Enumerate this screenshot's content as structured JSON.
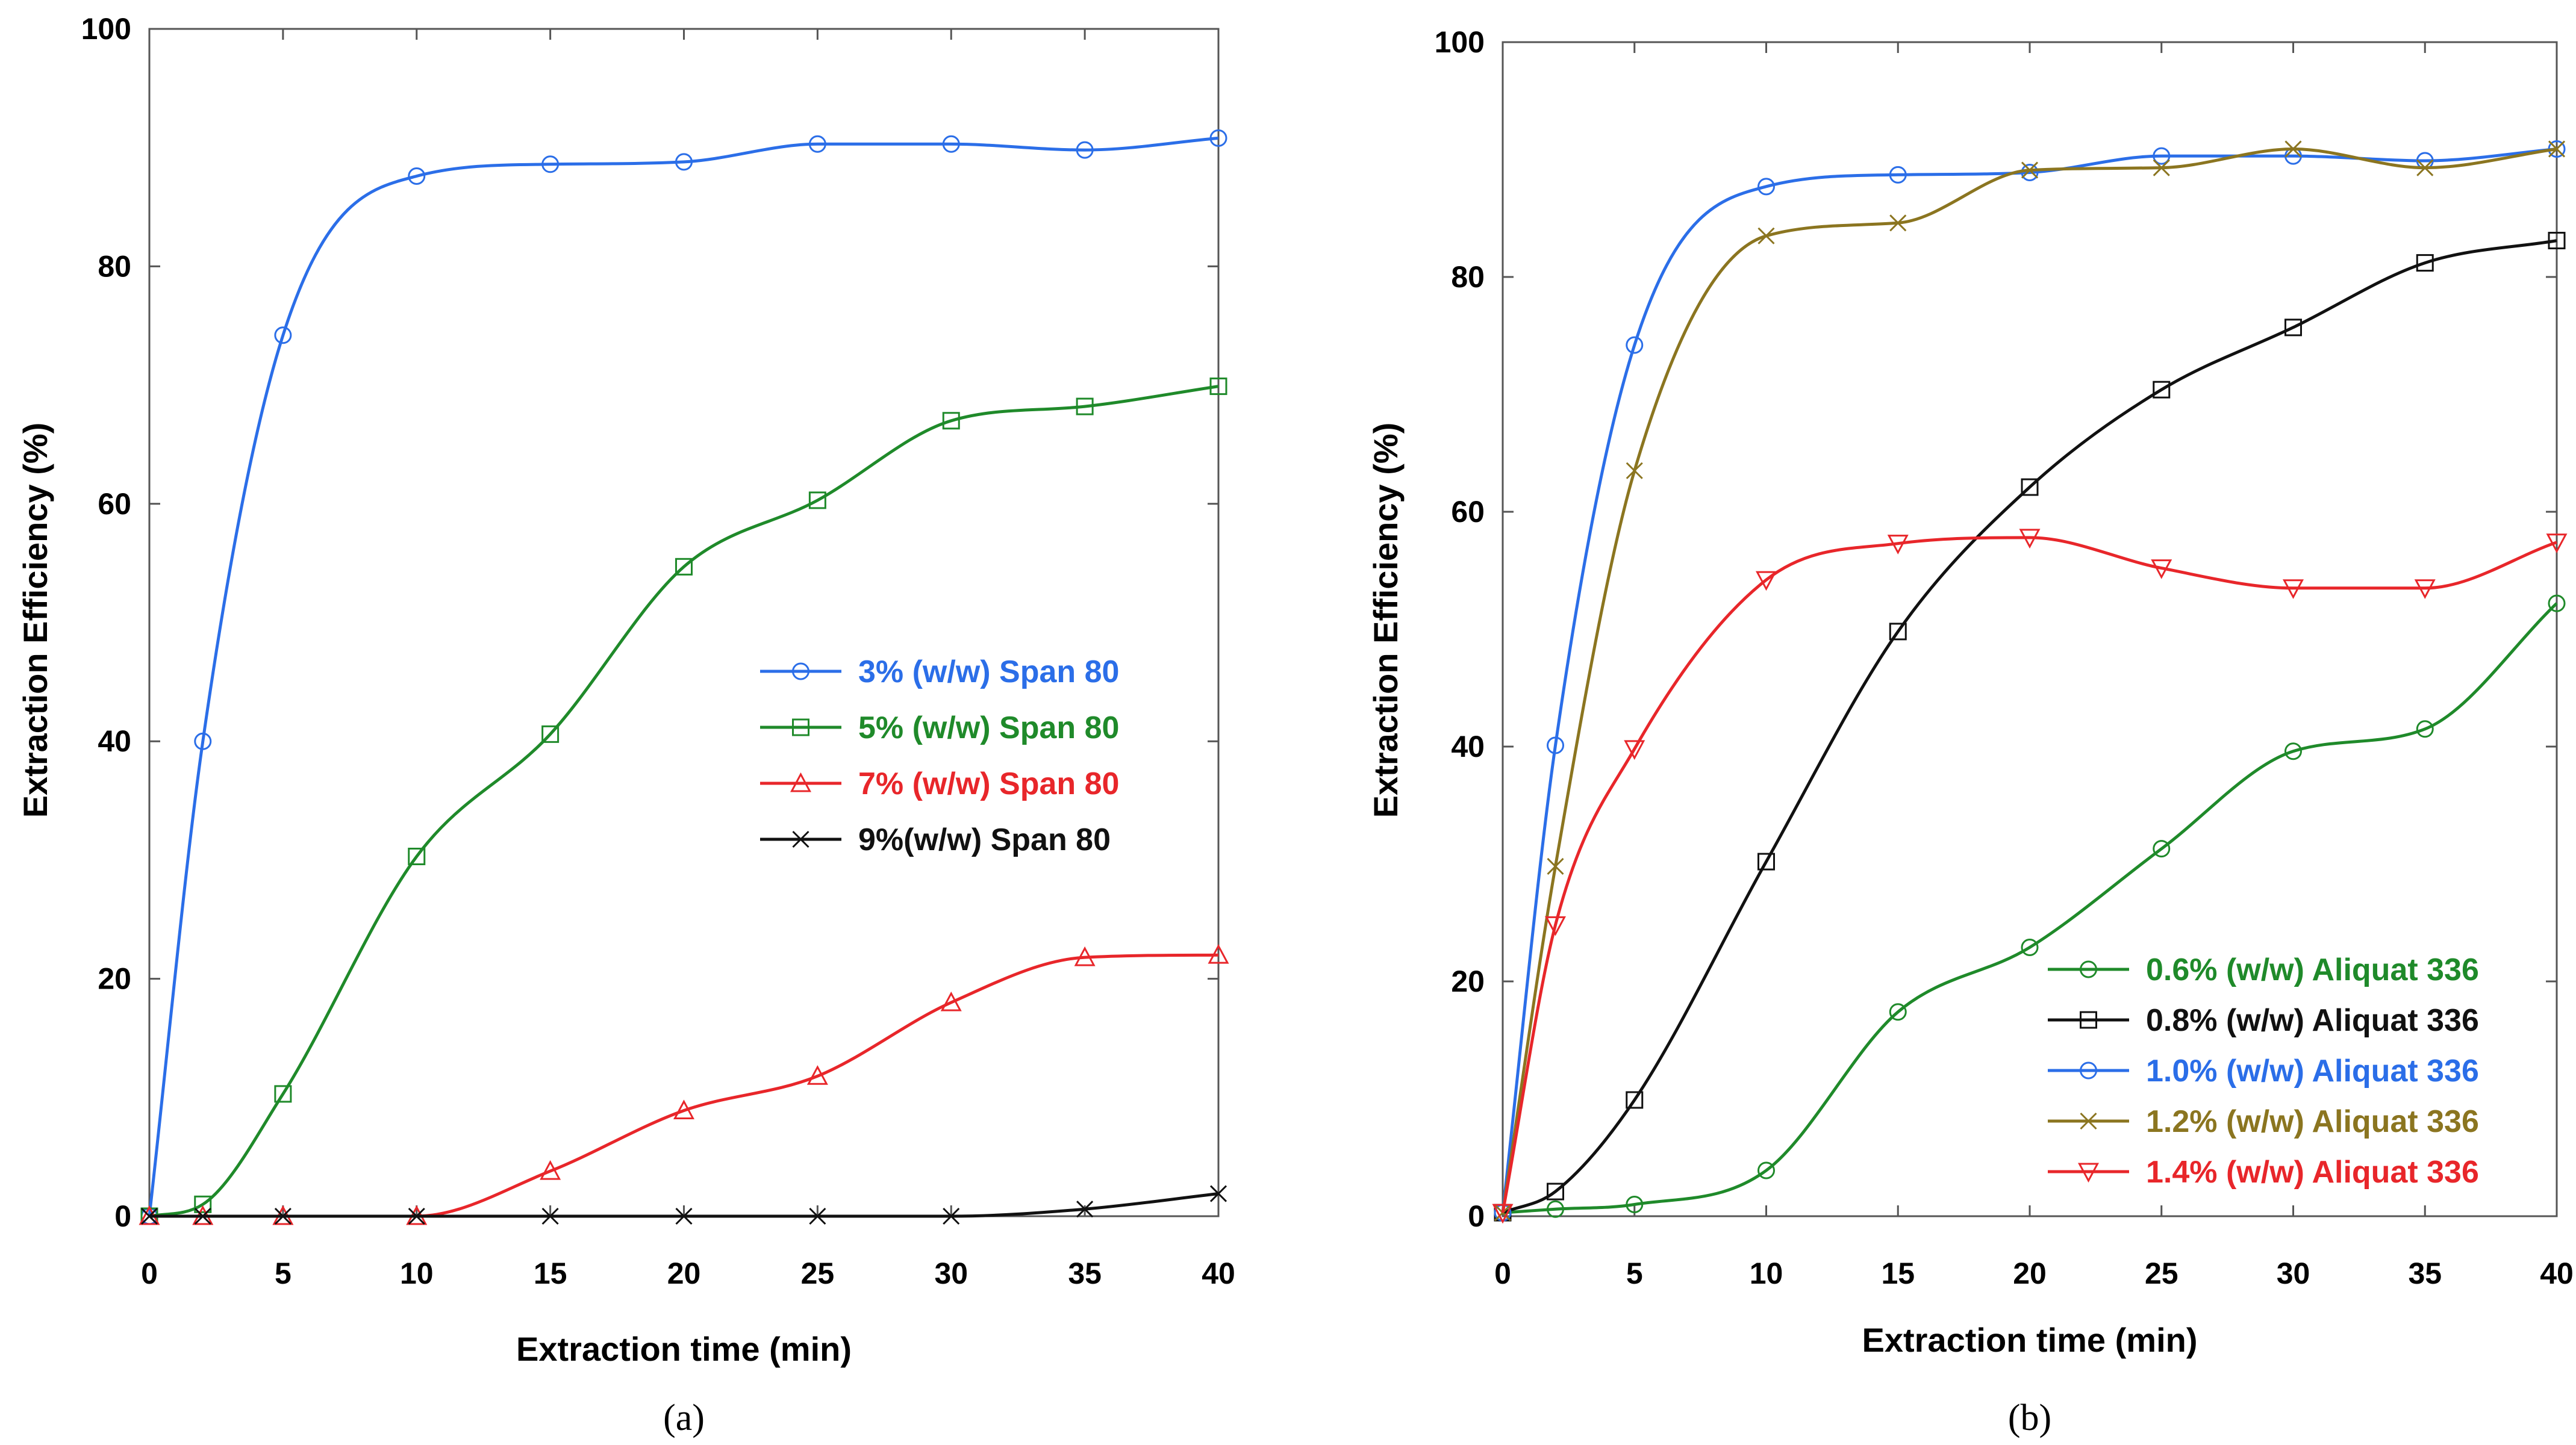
{
  "chart_data": [
    {
      "type": "line",
      "caption": "(a)",
      "xlabel": "Extraction time (min)",
      "ylabel": "Extraction Efficiency (%)",
      "xlim": [
        0,
        40
      ],
      "ylim": [
        0,
        100
      ],
      "xticks": [
        "0",
        "5",
        "10",
        "15",
        "20",
        "25",
        "30",
        "35",
        "40"
      ],
      "yticks": [
        "0",
        "20",
        "40",
        "60",
        "80",
        "100"
      ],
      "legend_position": "center-right",
      "series": [
        {
          "name": "3% (w/w) Span 80",
          "color": "#2b6ee8",
          "marker": "circle",
          "x": [
            0,
            2,
            5,
            10,
            15,
            20,
            25,
            30,
            35,
            40
          ],
          "y": [
            0,
            40,
            74.2,
            87.6,
            88.6,
            88.8,
            90.3,
            90.3,
            89.8,
            90.8
          ]
        },
        {
          "name": "5% (w/w) Span 80",
          "color": "#1f8a2a",
          "marker": "square",
          "x": [
            0,
            2,
            5,
            10,
            15,
            20,
            25,
            30,
            35,
            40
          ],
          "y": [
            0,
            1,
            10.3,
            30.3,
            40.6,
            54.7,
            60.3,
            67,
            68.2,
            69.9
          ]
        },
        {
          "name": "7% (w/w) Span 80",
          "color": "#e8262a",
          "marker": "triangle",
          "x": [
            0,
            2,
            5,
            10,
            15,
            20,
            25,
            30,
            35,
            40
          ],
          "y": [
            0,
            0,
            0,
            0,
            3.8,
            8.9,
            11.8,
            18,
            21.8,
            22
          ]
        },
        {
          "name": "9%(w/w) Span 80",
          "color": "#111111",
          "marker": "x",
          "x": [
            0,
            2,
            5,
            10,
            15,
            20,
            25,
            30,
            35,
            40
          ],
          "y": [
            0,
            0,
            0,
            0,
            0,
            0,
            0,
            0,
            0.6,
            1.9
          ]
        }
      ]
    },
    {
      "type": "line",
      "caption": "(b)",
      "xlabel": "Extraction time (min)",
      "ylabel": "Extraction Efficiency (%)",
      "xlim": [
        0,
        40
      ],
      "ylim": [
        0,
        100
      ],
      "xticks": [
        "0",
        "5",
        "10",
        "15",
        "20",
        "25",
        "30",
        "35",
        "40"
      ],
      "yticks": [
        "0",
        "20",
        "40",
        "60",
        "80",
        "100"
      ],
      "legend_position": "bottom-right",
      "series": [
        {
          "name": "0.6% (w/w) Aliquat 336",
          "color": "#1f8a2a",
          "marker": "circle",
          "x": [
            0,
            2,
            5,
            10,
            15,
            20,
            25,
            30,
            35,
            40
          ],
          "y": [
            0.3,
            0.6,
            1,
            3.9,
            17.4,
            22.9,
            31.3,
            39.6,
            41.5,
            52.2
          ]
        },
        {
          "name": "0.8% (w/w) Aliquat 336",
          "color": "#111111",
          "marker": "square",
          "x": [
            0,
            2,
            5,
            10,
            15,
            20,
            25,
            30,
            35,
            40
          ],
          "y": [
            0.3,
            2.1,
            9.9,
            30.2,
            49.8,
            62.1,
            70.4,
            75.7,
            81.2,
            83.1
          ]
        },
        {
          "name": "1.0% (w/w) Aliquat 336",
          "color": "#2b6ee8",
          "marker": "circle",
          "x": [
            0,
            2,
            5,
            10,
            15,
            20,
            25,
            30,
            35,
            40
          ],
          "y": [
            0.3,
            40.1,
            74.2,
            87.7,
            88.7,
            88.9,
            90.3,
            90.3,
            89.9,
            90.9
          ]
        },
        {
          "name": "1.2% (w/w) Aliquat 336",
          "color": "#8b7520",
          "marker": "x",
          "x": [
            0,
            2,
            5,
            10,
            15,
            20,
            25,
            30,
            35,
            40
          ],
          "y": [
            0.3,
            29.8,
            63.5,
            83.5,
            84.6,
            89.1,
            89.3,
            90.9,
            89.3,
            90.9
          ]
        },
        {
          "name": "1.4% (w/w) Aliquat 336",
          "color": "#e8262a",
          "marker": "triangle-down",
          "x": [
            0,
            2,
            5,
            10,
            15,
            20,
            25,
            30,
            35,
            40
          ],
          "y": [
            0.3,
            24.8,
            39.8,
            54.2,
            57.3,
            57.8,
            55.2,
            53.5,
            53.5,
            57.4
          ]
        }
      ]
    }
  ]
}
